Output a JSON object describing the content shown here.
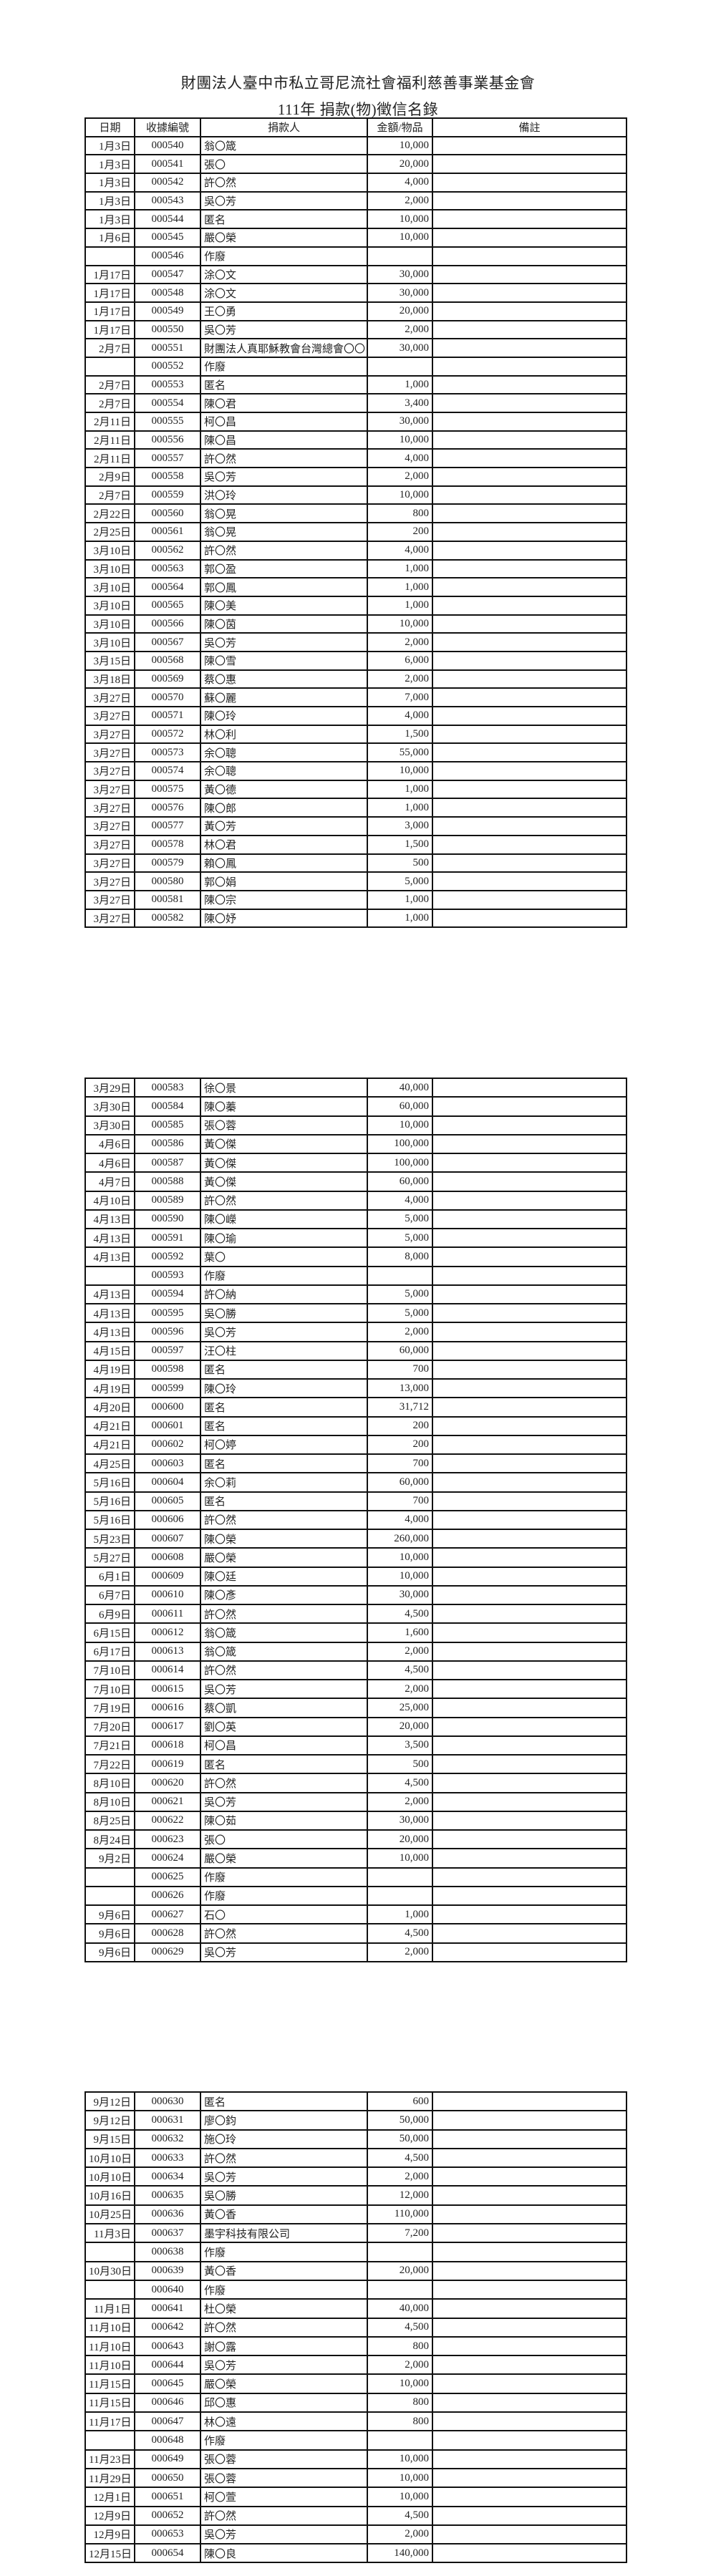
{
  "document": {
    "org_title": "財團法人臺中市私立哥尼流社會福利慈善事業基金會",
    "subtitle": "111年 捐款(物)徵信名錄",
    "columns": [
      "日期",
      "收據編號",
      "捐款人",
      "金額/物品",
      "備註"
    ]
  },
  "pages": [
    {
      "rows": [
        [
          "1月3日",
          "000540",
          "翁〇箴",
          "10,000",
          ""
        ],
        [
          "1月3日",
          "000541",
          "張〇",
          "20,000",
          ""
        ],
        [
          "1月3日",
          "000542",
          "許〇然",
          "4,000",
          ""
        ],
        [
          "1月3日",
          "000543",
          "吳〇芳",
          "2,000",
          ""
        ],
        [
          "1月3日",
          "000544",
          "匿名",
          "10,000",
          ""
        ],
        [
          "1月6日",
          "000545",
          "嚴〇榮",
          "10,000",
          ""
        ],
        [
          "",
          "000546",
          "作廢",
          "",
          ""
        ],
        [
          "1月17日",
          "000547",
          "涂〇文",
          "30,000",
          ""
        ],
        [
          "1月17日",
          "000548",
          "涂〇文",
          "30,000",
          ""
        ],
        [
          "1月17日",
          "000549",
          "王〇勇",
          "20,000",
          ""
        ],
        [
          "1月17日",
          "000550",
          "吳〇芳",
          "2,000",
          ""
        ],
        [
          "2月7日",
          "000551",
          "財團法人真耶穌教會台灣總會〇〇",
          "30,000",
          ""
        ],
        [
          "",
          "000552",
          "作廢",
          "",
          ""
        ],
        [
          "2月7日",
          "000553",
          "匿名",
          "1,000",
          ""
        ],
        [
          "2月7日",
          "000554",
          "陳〇君",
          "3,400",
          ""
        ],
        [
          "2月11日",
          "000555",
          "柯〇昌",
          "30,000",
          ""
        ],
        [
          "2月11日",
          "000556",
          "陳〇昌",
          "10,000",
          ""
        ],
        [
          "2月11日",
          "000557",
          "許〇然",
          "4,000",
          ""
        ],
        [
          "2月9日",
          "000558",
          "吳〇芳",
          "2,000",
          ""
        ],
        [
          "2月7日",
          "000559",
          "洪〇玲",
          "10,000",
          ""
        ],
        [
          "2月22日",
          "000560",
          "翁〇晃",
          "800",
          ""
        ],
        [
          "2月25日",
          "000561",
          "翁〇晃",
          "200",
          ""
        ],
        [
          "3月10日",
          "000562",
          "許〇然",
          "4,000",
          ""
        ],
        [
          "3月10日",
          "000563",
          "郭〇盈",
          "1,000",
          ""
        ],
        [
          "3月10日",
          "000564",
          "郭〇鳳",
          "1,000",
          ""
        ],
        [
          "3月10日",
          "000565",
          "陳〇美",
          "1,000",
          ""
        ],
        [
          "3月10日",
          "000566",
          "陳〇茵",
          "10,000",
          ""
        ],
        [
          "3月10日",
          "000567",
          "吳〇芳",
          "2,000",
          ""
        ],
        [
          "3月15日",
          "000568",
          "陳〇雪",
          "6,000",
          ""
        ],
        [
          "3月18日",
          "000569",
          "蔡〇惠",
          "2,000",
          ""
        ],
        [
          "3月27日",
          "000570",
          "蘇〇麗",
          "7,000",
          ""
        ],
        [
          "3月27日",
          "000571",
          "陳〇玲",
          "4,000",
          ""
        ],
        [
          "3月27日",
          "000572",
          "林〇利",
          "1,500",
          ""
        ],
        [
          "3月27日",
          "000573",
          "余〇聰",
          "55,000",
          ""
        ],
        [
          "3月27日",
          "000574",
          "余〇聰",
          "10,000",
          ""
        ],
        [
          "3月27日",
          "000575",
          "黃〇德",
          "1,000",
          ""
        ],
        [
          "3月27日",
          "000576",
          "陳〇郎",
          "1,000",
          ""
        ],
        [
          "3月27日",
          "000577",
          "黃〇芳",
          "3,000",
          ""
        ],
        [
          "3月27日",
          "000578",
          "林〇君",
          "1,500",
          ""
        ],
        [
          "3月27日",
          "000579",
          "賴〇鳳",
          "500",
          ""
        ],
        [
          "3月27日",
          "000580",
          "郭〇娟",
          "5,000",
          ""
        ],
        [
          "3月27日",
          "000581",
          "陳〇宗",
          "1,000",
          ""
        ],
        [
          "3月27日",
          "000582",
          "陳〇妤",
          "1,000",
          ""
        ]
      ]
    },
    {
      "rows": [
        [
          "3月29日",
          "000583",
          "徐〇景",
          "40,000",
          ""
        ],
        [
          "3月30日",
          "000584",
          "陳〇蓁",
          "60,000",
          ""
        ],
        [
          "3月30日",
          "000585",
          "張〇蓉",
          "10,000",
          ""
        ],
        [
          "4月6日",
          "000586",
          "黃〇傑",
          "100,000",
          ""
        ],
        [
          "4月6日",
          "000587",
          "黃〇傑",
          "100,000",
          ""
        ],
        [
          "4月7日",
          "000588",
          "黃〇傑",
          "60,000",
          ""
        ],
        [
          "4月10日",
          "000589",
          "許〇然",
          "4,000",
          ""
        ],
        [
          "4月13日",
          "000590",
          "陳〇嶸",
          "5,000",
          ""
        ],
        [
          "4月13日",
          "000591",
          "陳〇瑜",
          "5,000",
          ""
        ],
        [
          "4月13日",
          "000592",
          "葉〇",
          "8,000",
          ""
        ],
        [
          "",
          "000593",
          "作廢",
          "",
          ""
        ],
        [
          "4月13日",
          "000594",
          "許〇納",
          "5,000",
          ""
        ],
        [
          "4月13日",
          "000595",
          "吳〇勝",
          "5,000",
          ""
        ],
        [
          "4月13日",
          "000596",
          "吳〇芳",
          "2,000",
          ""
        ],
        [
          "4月15日",
          "000597",
          "汪〇柱",
          "60,000",
          ""
        ],
        [
          "4月19日",
          "000598",
          "匿名",
          "700",
          ""
        ],
        [
          "4月19日",
          "000599",
          "陳〇玲",
          "13,000",
          ""
        ],
        [
          "4月20日",
          "000600",
          "匿名",
          "31,712",
          ""
        ],
        [
          "4月21日",
          "000601",
          "匿名",
          "200",
          ""
        ],
        [
          "4月21日",
          "000602",
          "柯〇婷",
          "200",
          ""
        ],
        [
          "4月25日",
          "000603",
          "匿名",
          "700",
          ""
        ],
        [
          "5月16日",
          "000604",
          "余〇莉",
          "60,000",
          ""
        ],
        [
          "5月16日",
          "000605",
          "匿名",
          "700",
          ""
        ],
        [
          "5月16日",
          "000606",
          "許〇然",
          "4,000",
          ""
        ],
        [
          "5月23日",
          "000607",
          "陳〇榮",
          "260,000",
          ""
        ],
        [
          "5月27日",
          "000608",
          "嚴〇榮",
          "10,000",
          ""
        ],
        [
          "6月1日",
          "000609",
          "陳〇廷",
          "10,000",
          ""
        ],
        [
          "6月7日",
          "000610",
          "陳〇彥",
          "30,000",
          ""
        ],
        [
          "6月9日",
          "000611",
          "許〇然",
          "4,500",
          ""
        ],
        [
          "6月15日",
          "000612",
          "翁〇箴",
          "1,600",
          ""
        ],
        [
          "6月17日",
          "000613",
          "翁〇箴",
          "2,000",
          ""
        ],
        [
          "7月10日",
          "000614",
          "許〇然",
          "4,500",
          ""
        ],
        [
          "7月10日",
          "000615",
          "吳〇芳",
          "2,000",
          ""
        ],
        [
          "7月19日",
          "000616",
          "蔡〇凱",
          "25,000",
          ""
        ],
        [
          "7月20日",
          "000617",
          "劉〇英",
          "20,000",
          ""
        ],
        [
          "7月21日",
          "000618",
          "柯〇昌",
          "3,500",
          ""
        ],
        [
          "7月22日",
          "000619",
          "匿名",
          "500",
          ""
        ],
        [
          "8月10日",
          "000620",
          "許〇然",
          "4,500",
          ""
        ],
        [
          "8月10日",
          "000621",
          "吳〇芳",
          "2,000",
          ""
        ],
        [
          "8月25日",
          "000622",
          "陳〇茹",
          "30,000",
          ""
        ],
        [
          "8月24日",
          "000623",
          "張〇",
          "20,000",
          ""
        ],
        [
          "9月2日",
          "000624",
          "嚴〇榮",
          "10,000",
          ""
        ],
        [
          "",
          "000625",
          "作廢",
          "",
          ""
        ],
        [
          "",
          "000626",
          "作廢",
          "",
          ""
        ],
        [
          "9月6日",
          "000627",
          "石〇",
          "1,000",
          ""
        ],
        [
          "9月6日",
          "000628",
          "許〇然",
          "4,500",
          ""
        ],
        [
          "9月6日",
          "000629",
          "吳〇芳",
          "2,000",
          ""
        ]
      ]
    },
    {
      "rows": [
        [
          "9月12日",
          "000630",
          "匿名",
          "600",
          ""
        ],
        [
          "9月12日",
          "000631",
          "廖〇鈞",
          "50,000",
          ""
        ],
        [
          "9月15日",
          "000632",
          "施〇玲",
          "50,000",
          ""
        ],
        [
          "10月10日",
          "000633",
          "許〇然",
          "4,500",
          ""
        ],
        [
          "10月10日",
          "000634",
          "吳〇芳",
          "2,000",
          ""
        ],
        [
          "10月16日",
          "000635",
          "吳〇勝",
          "12,000",
          ""
        ],
        [
          "10月25日",
          "000636",
          "黃〇香",
          "110,000",
          ""
        ],
        [
          "11月3日",
          "000637",
          "墨宇科技有限公司",
          "7,200",
          ""
        ],
        [
          "",
          "000638",
          "作廢",
          "",
          ""
        ],
        [
          "10月30日",
          "000639",
          "黃〇香",
          "20,000",
          ""
        ],
        [
          "",
          "000640",
          "作廢",
          "",
          ""
        ],
        [
          "11月1日",
          "000641",
          "杜〇榮",
          "40,000",
          ""
        ],
        [
          "11月10日",
          "000642",
          "許〇然",
          "4,500",
          ""
        ],
        [
          "11月10日",
          "000643",
          "謝〇露",
          "800",
          ""
        ],
        [
          "11月10日",
          "000644",
          "吳〇芳",
          "2,000",
          ""
        ],
        [
          "11月15日",
          "000645",
          "嚴〇榮",
          "10,000",
          ""
        ],
        [
          "11月15日",
          "000646",
          "邱〇惠",
          "800",
          ""
        ],
        [
          "11月17日",
          "000647",
          "林〇遠",
          "800",
          ""
        ],
        [
          "",
          "000648",
          "作廢",
          "",
          ""
        ],
        [
          "11月23日",
          "000649",
          "張〇蓉",
          "10,000",
          ""
        ],
        [
          "11月29日",
          "000650",
          "張〇蓉",
          "10,000",
          ""
        ],
        [
          "12月1日",
          "000651",
          "柯〇萱",
          "10,000",
          ""
        ],
        [
          "12月9日",
          "000652",
          "許〇然",
          "4,500",
          ""
        ],
        [
          "12月9日",
          "000653",
          "吳〇芳",
          "2,000",
          ""
        ],
        [
          "12月15日",
          "000654",
          "陳〇良",
          "140,000",
          ""
        ]
      ]
    }
  ]
}
